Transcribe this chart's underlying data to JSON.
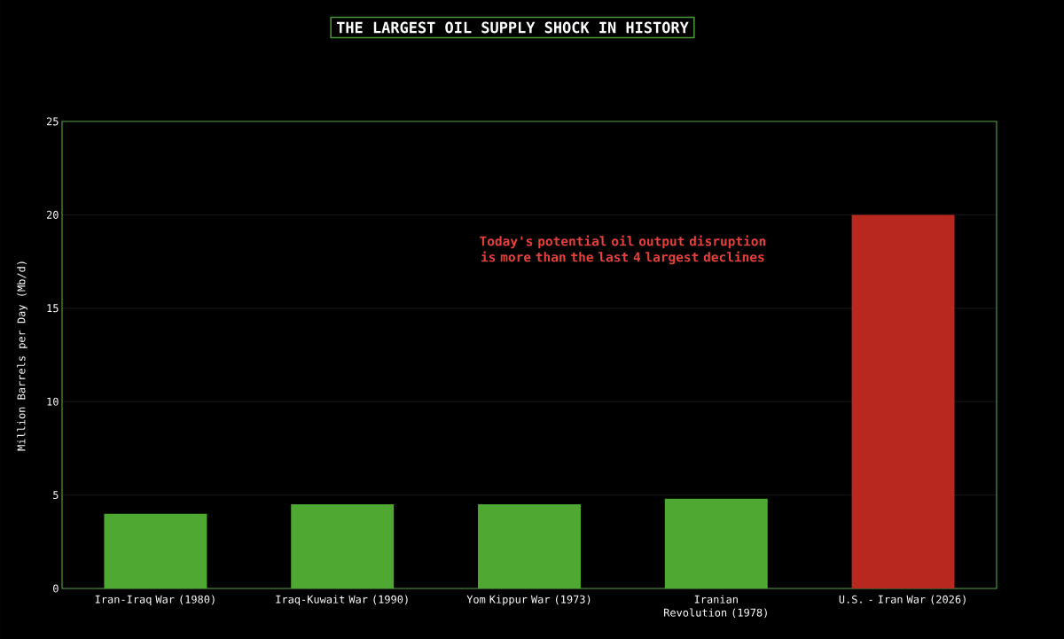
{
  "chart_data": {
    "type": "bar",
    "title": "THE LARGEST OIL SUPPLY SHOCK IN HISTORY",
    "ylabel": "Million Barrels per Day (Mb/d)",
    "categories": [
      "Iran-Iraq War (1980)",
      "Iraq-Kuwait War (1990)",
      "Yom Kippur War (1973)",
      "Iranian Revolution (1978)",
      "U.S. - Iran War (2026)"
    ],
    "values": [
      4.0,
      4.5,
      4.5,
      4.8,
      20.0
    ],
    "colors": [
      "#4ea832",
      "#4ea832",
      "#4ea832",
      "#4ea832",
      "#b8281e"
    ],
    "ylim": [
      0,
      25
    ],
    "yticks": [
      0,
      5,
      10,
      15,
      20,
      25
    ],
    "grid": "y",
    "annotations": [
      "Today's potential oil output disruption is more than the last 4 largest declines"
    ]
  }
}
